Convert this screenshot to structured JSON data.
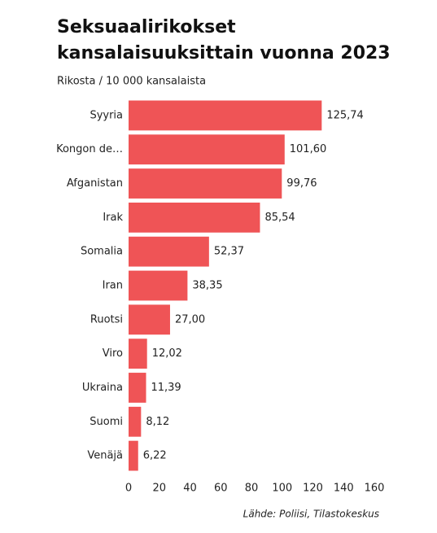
{
  "chart_data": {
    "type": "bar",
    "orientation": "horizontal",
    "title": [
      "Seksuaalirikokset",
      "kansalaisuuksittain vuonna 2023"
    ],
    "subtitle": "Rikosta / 10 000 kansalaista",
    "source": "Lähde: Poliisi, Tilastokeskus",
    "categories": [
      "Syyria",
      "Kongon de…",
      "Afganistan",
      "Irak",
      "Somalia",
      "Iran",
      "Ruotsi",
      "Viro",
      "Ukraina",
      "Suomi",
      "Venäjä"
    ],
    "values": [
      125.74,
      101.6,
      99.76,
      85.54,
      52.37,
      38.35,
      27.0,
      12.02,
      11.39,
      8.12,
      6.22
    ],
    "value_labels": [
      "125,74",
      "101,60",
      "99,76",
      "85,54",
      "52,37",
      "38,35",
      "27,00",
      "12,02",
      "11,39",
      "8,12",
      "6,22"
    ],
    "color": "#ef5456",
    "xlim": [
      0,
      160
    ],
    "xticks": [
      0,
      20,
      40,
      60,
      80,
      100,
      120,
      140,
      160
    ],
    "grid": false
  }
}
